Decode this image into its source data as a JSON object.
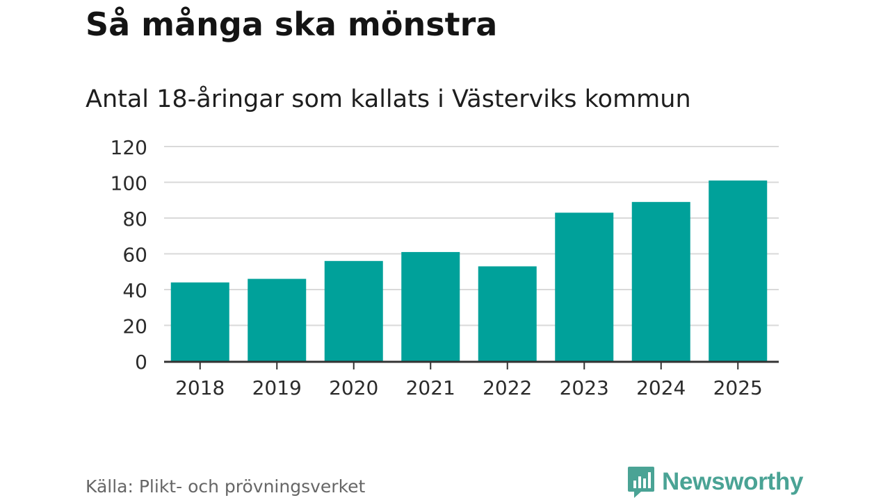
{
  "title": "Så många ska mönstra",
  "subtitle": "Antal 18-åringar som kallats i Västerviks kommun",
  "source": "Källa: Plikt- och prövningsverket",
  "brand": {
    "name": "Newsworthy",
    "icon": "newsworthy-logo-icon",
    "color": "#4aa395"
  },
  "colors": {
    "bar": "#00a19a",
    "grid": "#d9d9d9",
    "axis": "#333333",
    "tick_text": "#2b2b2b"
  },
  "chart_data": {
    "type": "bar",
    "categories": [
      "2018",
      "2019",
      "2020",
      "2021",
      "2022",
      "2023",
      "2024",
      "2025"
    ],
    "values": [
      44,
      46,
      56,
      61,
      53,
      83,
      89,
      101
    ],
    "yticks": [
      0,
      20,
      40,
      60,
      80,
      100,
      120
    ],
    "ylim": [
      0,
      120
    ],
    "xlabel": "",
    "ylabel": "",
    "grid": true,
    "legend": false
  }
}
